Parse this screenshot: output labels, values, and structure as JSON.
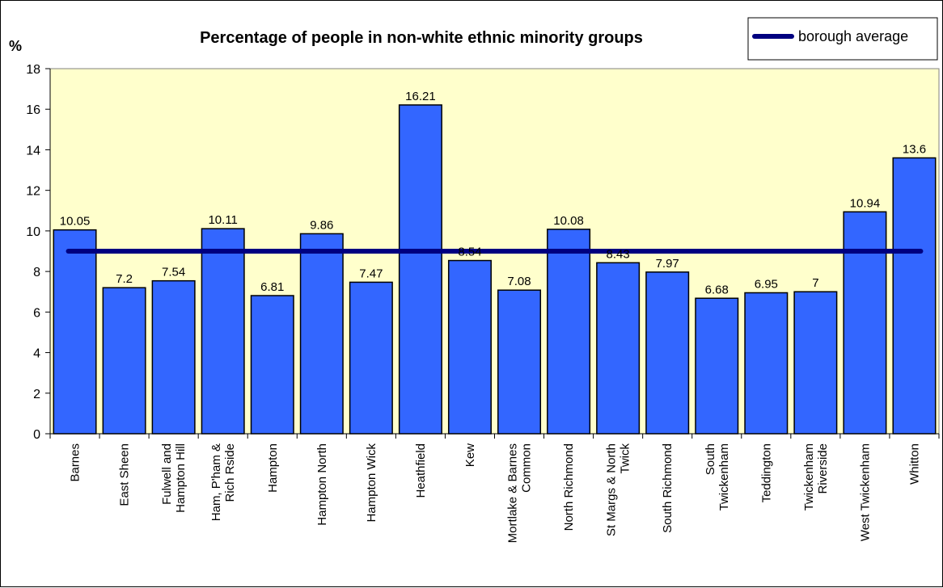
{
  "chart_data": {
    "type": "bar",
    "title": "Percentage of people in non-white ethnic minority groups",
    "ylabel": "%",
    "xlabel": "",
    "ylim": [
      0,
      18
    ],
    "yticks": [
      0,
      2,
      4,
      6,
      8,
      10,
      12,
      14,
      16,
      18
    ],
    "categories": [
      "Barnes",
      "East Sheen",
      "Fulwell and Hampton Hill",
      "Ham, P'ham & Rich Rside",
      "Hampton",
      "Hampton North",
      "Hampton Wick",
      "Heathfield",
      "Kew",
      "Mortlake & Barnes Common",
      "North Richmond",
      "St Margs & North Twick",
      "South Richmond",
      "South Twickenham",
      "Teddington",
      "Twickenham Riverside",
      "West Twickenham",
      "Whitton"
    ],
    "category_lines": [
      [
        "Barnes"
      ],
      [
        "East Sheen"
      ],
      [
        "Fulwell and",
        "Hampton Hill"
      ],
      [
        "Ham, P'ham &",
        "Rich Rside"
      ],
      [
        "Hampton"
      ],
      [
        "Hampton North"
      ],
      [
        "Hampton Wick"
      ],
      [
        "Heathfield"
      ],
      [
        "Kew"
      ],
      [
        "Mortlake & Barnes",
        "Common"
      ],
      [
        "North Richmond"
      ],
      [
        "St Margs & North",
        "Twick"
      ],
      [
        "South Richmond"
      ],
      [
        "South",
        "Twickenham"
      ],
      [
        "Teddington"
      ],
      [
        "Twickenham",
        "Riverside"
      ],
      [
        "West Twickenham"
      ],
      [
        "Whitton"
      ]
    ],
    "values": [
      10.05,
      7.2,
      7.54,
      10.11,
      6.81,
      9.86,
      7.47,
      16.21,
      8.54,
      7.08,
      10.08,
      8.43,
      7.97,
      6.68,
      6.95,
      7,
      10.94,
      13.6
    ],
    "value_labels": [
      "10.05",
      "7.2",
      "7.54",
      "10.11",
      "6.81",
      "9.86",
      "7.47",
      "16.21",
      "8.54",
      "7.08",
      "10.08",
      "8.43",
      "7.97",
      "6.68",
      "6.95",
      "7",
      "10.94",
      "13.6"
    ],
    "reference_line": {
      "name": "borough average",
      "value": 9.0
    },
    "legend": {
      "entries": [
        "borough average"
      ],
      "placement": "top-right"
    },
    "grid": false,
    "colors": {
      "bar": "#3366FF",
      "bar_edge": "#000000",
      "plot_bg": "#FFFFCC",
      "average_line": "#000080"
    }
  }
}
